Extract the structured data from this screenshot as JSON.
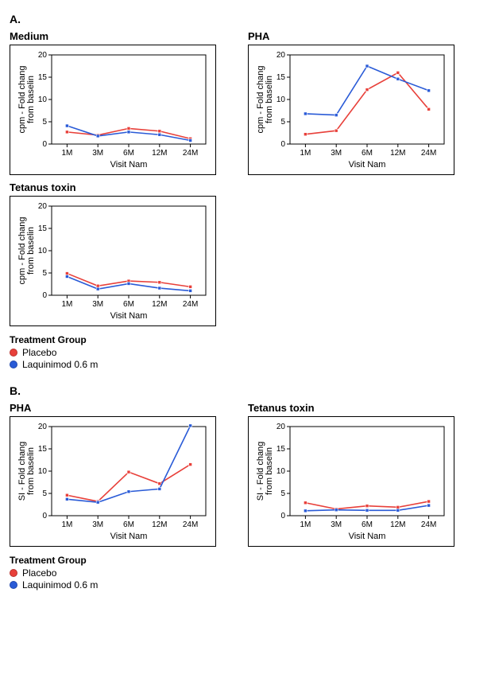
{
  "sectionA": {
    "label": "A."
  },
  "sectionB": {
    "label": "B."
  },
  "legend": {
    "title": "Treatment Group",
    "items": [
      {
        "label": "Placebo",
        "color": "#e8403a"
      },
      {
        "label": "Laquinimod 0.6 m",
        "color": "#2a5bd7"
      }
    ]
  },
  "style": {
    "background": "#ffffff",
    "plot_border_color": "#000000",
    "grid_color": "#c9c9c9",
    "marker_size": 4,
    "line_width": 1.6,
    "title_fontsize": 13,
    "axis_fontsize": 11,
    "tick_fontsize": 10
  },
  "axes": {
    "x_categories": [
      "1M",
      "3M",
      "6M",
      "12M",
      "24M"
    ],
    "x_label": "Visit Nam"
  },
  "charts": {
    "a_medium": {
      "title": "Medium",
      "type": "line",
      "y_label": "cpm - Fold chang\nfrom baselin",
      "ylim": [
        0,
        20
      ],
      "ytick_step": 5,
      "series": [
        {
          "name": "Placebo",
          "color": "#e8403a",
          "values": [
            2.7,
            2.0,
            3.5,
            2.9,
            1.2
          ]
        },
        {
          "name": "Laquinimod 0.6 m",
          "color": "#2a5bd7",
          "values": [
            4.1,
            1.8,
            2.7,
            2.1,
            0.8
          ]
        }
      ]
    },
    "a_pha": {
      "title": "PHA",
      "type": "line",
      "y_label": "cpm - Fold chang\nfrom baselin",
      "ylim": [
        0,
        20
      ],
      "ytick_step": 5,
      "series": [
        {
          "name": "Placebo",
          "color": "#e8403a",
          "values": [
            2.2,
            3.0,
            12.2,
            16.0,
            7.8
          ]
        },
        {
          "name": "Laquinimod 0.6 m",
          "color": "#2a5bd7",
          "values": [
            6.8,
            6.5,
            17.5,
            14.6,
            12.0
          ]
        }
      ]
    },
    "a_tetanus": {
      "title": "Tetanus toxin",
      "type": "line",
      "y_label": "cpm - Fold chang\nfrom baselin",
      "ylim": [
        0,
        20
      ],
      "ytick_step": 5,
      "series": [
        {
          "name": "Placebo",
          "color": "#e8403a",
          "values": [
            4.9,
            2.1,
            3.2,
            2.9,
            1.9
          ]
        },
        {
          "name": "Laquinimod 0.6 m",
          "color": "#2a5bd7",
          "values": [
            4.2,
            1.4,
            2.6,
            1.6,
            1.0
          ]
        }
      ]
    },
    "b_pha": {
      "title": "PHA",
      "type": "line",
      "y_label": "SI - Fold chang\nfrom baselin",
      "ylim": [
        0,
        20
      ],
      "ytick_step": 5,
      "series": [
        {
          "name": "Placebo",
          "color": "#e8403a",
          "values": [
            4.6,
            3.2,
            9.8,
            7.2,
            11.5
          ]
        },
        {
          "name": "Laquinimod 0.6 m",
          "color": "#2a5bd7",
          "values": [
            3.7,
            3.0,
            5.4,
            6.0,
            20.2
          ]
        }
      ]
    },
    "b_tetanus": {
      "title": "Tetanus toxin",
      "type": "line",
      "y_label": "SI - Fold chang\nfrom baselin",
      "ylim": [
        0,
        20
      ],
      "ytick_step": 5,
      "series": [
        {
          "name": "Placebo",
          "color": "#e8403a",
          "values": [
            2.9,
            1.5,
            2.2,
            1.9,
            3.2
          ]
        },
        {
          "name": "Laquinimod 0.6 m",
          "color": "#2a5bd7",
          "values": [
            1.1,
            1.3,
            1.2,
            1.2,
            2.3
          ]
        }
      ]
    }
  }
}
